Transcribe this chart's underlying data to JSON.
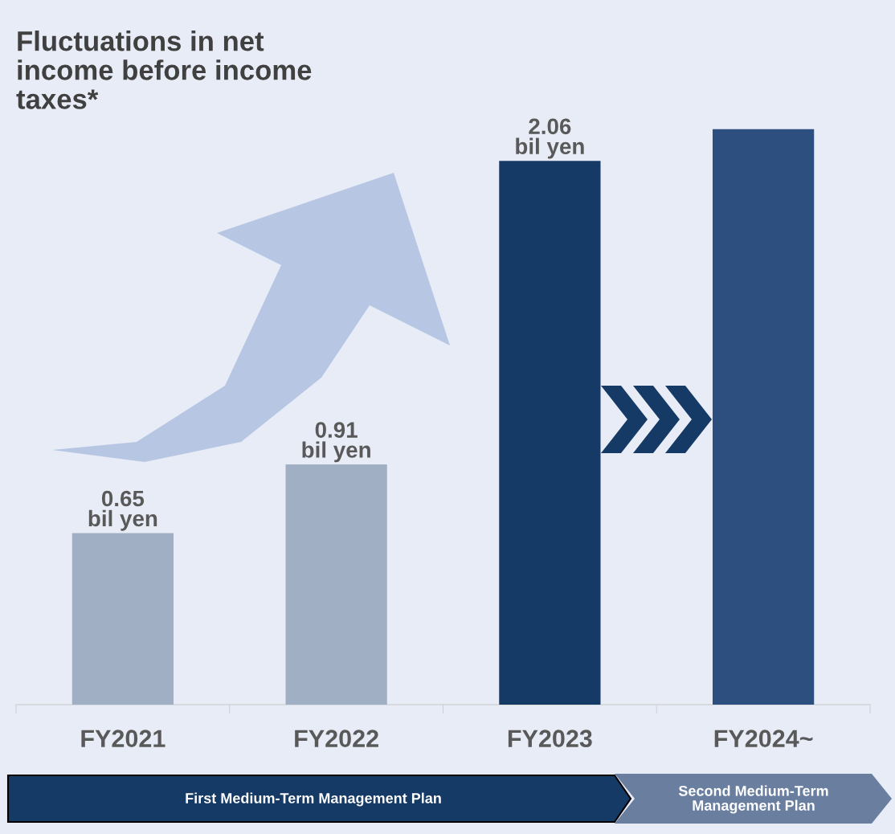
{
  "chart_data": {
    "type": "bar",
    "title": "Fluctuations in net\nincome before income\ntaxes*",
    "categories": [
      "FY2021",
      "FY2022",
      "FY2023",
      "FY2024~"
    ],
    "values": [
      0.65,
      0.91,
      2.06,
      2.18
    ],
    "colors": [
      "#a0afc3",
      "#a0afc3",
      "#163a66",
      "#2c4f80"
    ],
    "value_labels": [
      "0.65\nbil yen",
      "0.91\nbil yen",
      "2.06\nbil yen",
      null
    ],
    "annotations": [
      "First Medium-Term Management Plan",
      "Second Medium-Term\nManagement Plan"
    ],
    "grid": false,
    "legend": false
  }
}
